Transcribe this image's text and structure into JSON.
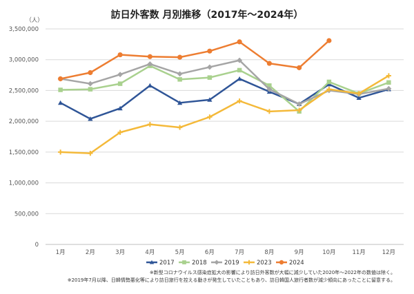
{
  "chart_data": {
    "type": "line",
    "title": "訪日外客数 月別推移（2017年～2024年）",
    "ylabel": "（人）",
    "xlabel": "",
    "categories": [
      "1月",
      "2月",
      "3月",
      "4月",
      "5月",
      "6月",
      "7月",
      "8月",
      "9月",
      "10月",
      "11月",
      "12月"
    ],
    "ylim": [
      0,
      3500000
    ],
    "yticks": [
      0,
      500000,
      1000000,
      1500000,
      2000000,
      2500000,
      3000000,
      3500000
    ],
    "ytick_labels": [
      "0",
      "500,000",
      "1,000,000",
      "1,500,000",
      "2,000,000",
      "2,500,000",
      "3,000,000",
      "3,500,000"
    ],
    "grid": true,
    "legend_position": "bottom",
    "series": [
      {
        "name": "2017",
        "color": "#2F5597",
        "marker": "triangle",
        "values": [
          2300000,
          2040000,
          2210000,
          2580000,
          2300000,
          2350000,
          2690000,
          2480000,
          2280000,
          2600000,
          2380000,
          2520000
        ]
      },
      {
        "name": "2018",
        "color": "#A9D18E",
        "marker": "square",
        "values": [
          2510000,
          2520000,
          2610000,
          2900000,
          2680000,
          2710000,
          2830000,
          2580000,
          2160000,
          2640000,
          2450000,
          2630000
        ]
      },
      {
        "name": "2019",
        "color": "#A5A5A5",
        "marker": "diamond",
        "values": [
          2690000,
          2610000,
          2760000,
          2930000,
          2770000,
          2880000,
          2990000,
          2520000,
          2280000,
          2500000,
          2440000,
          2530000
        ]
      },
      {
        "name": "2023",
        "color": "#F4B939",
        "marker": "plus",
        "values": [
          1500000,
          1480000,
          1820000,
          1950000,
          1900000,
          2070000,
          2330000,
          2160000,
          2180000,
          2520000,
          2450000,
          2740000
        ]
      },
      {
        "name": "2024",
        "color": "#ED7D31",
        "marker": "circle",
        "values": [
          2690000,
          2790000,
          3080000,
          3050000,
          3040000,
          3140000,
          3290000,
          2940000,
          2870000,
          3310000,
          null,
          null
        ]
      }
    ],
    "notes": [
      "※新型コロナウイルス感染症拡大の影響により訪日外客数が大幅に減少していた2020年～2022年の数値は除く。",
      "※2019年7月以降、日韓情勢悪化等により訪日旅行を控える動きが発生していたこともあり、訪日韓国人旅行者数が減少傾向にあったことに留意する。"
    ]
  }
}
